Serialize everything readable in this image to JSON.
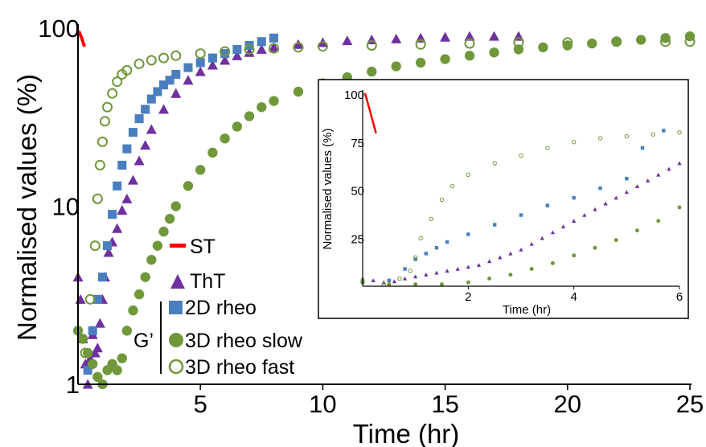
{
  "colors": {
    "st": "#ff0000",
    "tht": "#7030a0",
    "rheo2d": "#4a7ebf",
    "rheo3d": "#70973a",
    "axis": "#000000"
  },
  "legend": {
    "items": [
      {
        "key": "st",
        "label": "ST",
        "marker": "dash"
      },
      {
        "key": "tht",
        "label": "ThT",
        "marker": "triangle"
      },
      {
        "key": "rheo2d",
        "label": "2D rheo",
        "marker": "square"
      },
      {
        "key": "rheo3d_slow",
        "label": "3D rheo slow",
        "marker": "filled-circle"
      },
      {
        "key": "rheo3d_fast",
        "label": "3D rheo fast",
        "marker": "open-circle"
      }
    ],
    "group_label": "G’"
  },
  "chart_data": [
    {
      "type": "scatter",
      "title": "",
      "xlabel": "Time (hr)",
      "ylabel": "Normalised values (%)",
      "xlim": [
        0,
        25
      ],
      "ylim": [
        1,
        100
      ],
      "yscale": "log",
      "xticks": [
        "5",
        "10",
        "15",
        "20",
        "25"
      ],
      "yticks": [
        "1",
        "10",
        "100"
      ],
      "series": [
        {
          "name": "ST",
          "points": [
            [
              0.05,
              95
            ],
            [
              0.15,
              88
            ],
            [
              0.25,
              80
            ]
          ]
        },
        {
          "name": "ThT",
          "points": [
            [
              0.0,
              4.0
            ],
            [
              0.1,
              3.0
            ],
            [
              0.2,
              1.8
            ],
            [
              0.3,
              1.3
            ],
            [
              0.4,
              1.0
            ],
            [
              0.5,
              1.4
            ],
            [
              0.6,
              1.9
            ],
            [
              0.7,
              1.5
            ],
            [
              0.8,
              1.6
            ],
            [
              0.9,
              2.2
            ],
            [
              1.0,
              3.0
            ],
            [
              1.1,
              4.0
            ],
            [
              1.25,
              5.5
            ],
            [
              1.4,
              6.3
            ],
            [
              1.6,
              7.5
            ],
            [
              1.8,
              9.5
            ],
            [
              2.0,
              11
            ],
            [
              2.25,
              14
            ],
            [
              2.5,
              18
            ],
            [
              2.75,
              22
            ],
            [
              3.0,
              27
            ],
            [
              3.5,
              35
            ],
            [
              4.0,
              43
            ],
            [
              4.5,
              51
            ],
            [
              5.0,
              57
            ],
            [
              5.5,
              62
            ],
            [
              6.0,
              66
            ],
            [
              6.5,
              70
            ],
            [
              7.0,
              73
            ],
            [
              7.5,
              76
            ],
            [
              8.0,
              78
            ],
            [
              9.0,
              81
            ],
            [
              10.0,
              83
            ],
            [
              11.0,
              85
            ],
            [
              12.0,
              86
            ],
            [
              13.0,
              87
            ],
            [
              14.0,
              88
            ],
            [
              15.0,
              89
            ],
            [
              16.0,
              90
            ],
            [
              17.0,
              90
            ],
            [
              18.0,
              90
            ]
          ]
        },
        {
          "name": "2D rheo",
          "points": [
            [
              0.4,
              1.2
            ],
            [
              0.6,
              2.0
            ],
            [
              0.8,
              3.0
            ],
            [
              1.0,
              4.0
            ],
            [
              1.2,
              6.0
            ],
            [
              1.4,
              9.0
            ],
            [
              1.6,
              13
            ],
            [
              1.8,
              17
            ],
            [
              2.0,
              21
            ],
            [
              2.25,
              26
            ],
            [
              2.5,
              31
            ],
            [
              2.75,
              35
            ],
            [
              3.0,
              40
            ],
            [
              3.25,
              44
            ],
            [
              3.5,
              48
            ],
            [
              3.75,
              51
            ],
            [
              4.0,
              55
            ],
            [
              4.5,
              60
            ],
            [
              5.0,
              64
            ],
            [
              5.5,
              68
            ],
            [
              6.0,
              72
            ],
            [
              6.5,
              76
            ],
            [
              7.0,
              80
            ],
            [
              7.5,
              84
            ],
            [
              8.0,
              88
            ]
          ]
        },
        {
          "name": "3D rheo slow",
          "points": [
            [
              0.0,
              2.0
            ],
            [
              0.2,
              1.8
            ],
            [
              0.4,
              1.5
            ],
            [
              0.6,
              1.3
            ],
            [
              0.8,
              1.1
            ],
            [
              1.0,
              1.0
            ],
            [
              1.2,
              1.2
            ],
            [
              1.4,
              1.3
            ],
            [
              1.6,
              1.2
            ],
            [
              1.8,
              1.4
            ],
            [
              2.0,
              2.0
            ],
            [
              2.25,
              2.6
            ],
            [
              2.5,
              3.2
            ],
            [
              2.75,
              4.0
            ],
            [
              3.0,
              5.0
            ],
            [
              3.25,
              6.0
            ],
            [
              3.5,
              7.2
            ],
            [
              3.75,
              8.5
            ],
            [
              4.0,
              10
            ],
            [
              4.5,
              13
            ],
            [
              5.0,
              16
            ],
            [
              5.5,
              20
            ],
            [
              6.0,
              24
            ],
            [
              6.5,
              28
            ],
            [
              7.0,
              32
            ],
            [
              7.5,
              36
            ],
            [
              8.0,
              39
            ],
            [
              9.0,
              44
            ],
            [
              10.0,
              49
            ],
            [
              11.0,
              53
            ],
            [
              12.0,
              57
            ],
            [
              13.0,
              61
            ],
            [
              14.0,
              64
            ],
            [
              15.0,
              67
            ],
            [
              16.0,
              70
            ],
            [
              17.0,
              73
            ],
            [
              18.0,
              76
            ],
            [
              19.0,
              78
            ],
            [
              20.0,
              80
            ],
            [
              21.0,
              82
            ],
            [
              22.0,
              84
            ],
            [
              23.0,
              86
            ],
            [
              24.0,
              88
            ],
            [
              25.0,
              90
            ]
          ]
        },
        {
          "name": "3D rheo fast",
          "points": [
            [
              0.3,
              1.5
            ],
            [
              0.5,
              3.0
            ],
            [
              0.7,
              6.0
            ],
            [
              0.8,
              11
            ],
            [
              0.9,
              17
            ],
            [
              1.0,
              23
            ],
            [
              1.1,
              30
            ],
            [
              1.2,
              36
            ],
            [
              1.4,
              43
            ],
            [
              1.6,
              50
            ],
            [
              1.8,
              55
            ],
            [
              2.0,
              58
            ],
            [
              2.5,
              63
            ],
            [
              3.0,
              66
            ],
            [
              3.5,
              68
            ],
            [
              4.0,
              70
            ],
            [
              5.0,
              72
            ],
            [
              6.0,
              74
            ],
            [
              7.0,
              76
            ],
            [
              8.0,
              77
            ],
            [
              9.0,
              78
            ],
            [
              10.0,
              79
            ],
            [
              12.0,
              80
            ],
            [
              14.0,
              81
            ],
            [
              16.0,
              82
            ],
            [
              18.0,
              83
            ],
            [
              20.0,
              83
            ],
            [
              22.0,
              84
            ],
            [
              24.0,
              84
            ],
            [
              25.0,
              84
            ]
          ]
        }
      ]
    },
    {
      "type": "scatter",
      "title": "",
      "xlabel": "Time (hr)",
      "ylabel": "Normalised values (%)",
      "xlim": [
        0,
        6
      ],
      "ylim": [
        0,
        100
      ],
      "yscale": "linear",
      "xticks": [
        "2",
        "4",
        "6"
      ],
      "yticks": [
        "25",
        "50",
        "75",
        "100"
      ],
      "series": [
        {
          "name": "ST",
          "points": [
            [
              0.05,
              100
            ],
            [
              0.15,
              90
            ],
            [
              0.25,
              80
            ]
          ]
        },
        {
          "name": "ThT",
          "points": [
            [
              0.0,
              4.0
            ],
            [
              0.2,
              3.0
            ],
            [
              0.4,
              2.0
            ],
            [
              0.6,
              2.5
            ],
            [
              0.8,
              4.0
            ],
            [
              1.0,
              5.0
            ],
            [
              1.2,
              6.0
            ],
            [
              1.4,
              7.0
            ],
            [
              1.6,
              8.0
            ],
            [
              1.8,
              9.0
            ],
            [
              2.0,
              10
            ],
            [
              2.2,
              11
            ],
            [
              2.4,
              13
            ],
            [
              2.6,
              15
            ],
            [
              2.8,
              17
            ],
            [
              3.0,
              19
            ],
            [
              3.2,
              22
            ],
            [
              3.4,
              25
            ],
            [
              3.6,
              28
            ],
            [
              3.8,
              31
            ],
            [
              4.0,
              34
            ],
            [
              4.2,
              37
            ],
            [
              4.4,
              40
            ],
            [
              4.6,
              43
            ],
            [
              4.8,
              46
            ],
            [
              5.0,
              49
            ],
            [
              5.2,
              52
            ],
            [
              5.4,
              55
            ],
            [
              5.6,
              58
            ],
            [
              5.8,
              61
            ],
            [
              6.0,
              64
            ]
          ]
        },
        {
          "name": "2D rheo",
          "points": [
            [
              0.0,
              2.0
            ],
            [
              0.5,
              3.0
            ],
            [
              0.8,
              9.0
            ],
            [
              1.0,
              14
            ],
            [
              1.2,
              17
            ],
            [
              1.4,
              20
            ],
            [
              1.6,
              23
            ],
            [
              2.0,
              27
            ],
            [
              2.5,
              32
            ],
            [
              3.0,
              37
            ],
            [
              3.5,
              42
            ],
            [
              4.0,
              46
            ],
            [
              4.5,
              51
            ],
            [
              5.0,
              56
            ],
            [
              5.3,
              72
            ],
            [
              5.7,
              81
            ]
          ]
        },
        {
          "name": "3D rheo slow",
          "points": [
            [
              0.0,
              3.0
            ],
            [
              0.5,
              1.0
            ],
            [
              1.0,
              1.0
            ],
            [
              1.5,
              1.0
            ],
            [
              2.0,
              2.0
            ],
            [
              2.4,
              4.0
            ],
            [
              2.8,
              6.0
            ],
            [
              3.2,
              9.0
            ],
            [
              3.6,
              12
            ],
            [
              4.0,
              16
            ],
            [
              4.4,
              20
            ],
            [
              4.8,
              24
            ],
            [
              5.2,
              29
            ],
            [
              5.6,
              34
            ],
            [
              6.0,
              41
            ]
          ]
        },
        {
          "name": "3D rheo fast",
          "points": [
            [
              0.0,
              2.0
            ],
            [
              0.4,
              1.0
            ],
            [
              0.7,
              4.0
            ],
            [
              0.9,
              8.0
            ],
            [
              1.0,
              15
            ],
            [
              1.1,
              25
            ],
            [
              1.3,
              35
            ],
            [
              1.5,
              45
            ],
            [
              1.7,
              52
            ],
            [
              2.0,
              58
            ],
            [
              2.5,
              64
            ],
            [
              3.0,
              68
            ],
            [
              3.5,
              72
            ],
            [
              4.0,
              75
            ],
            [
              4.5,
              77
            ],
            [
              5.0,
              78
            ],
            [
              5.5,
              79
            ],
            [
              6.0,
              80
            ]
          ]
        }
      ]
    }
  ]
}
